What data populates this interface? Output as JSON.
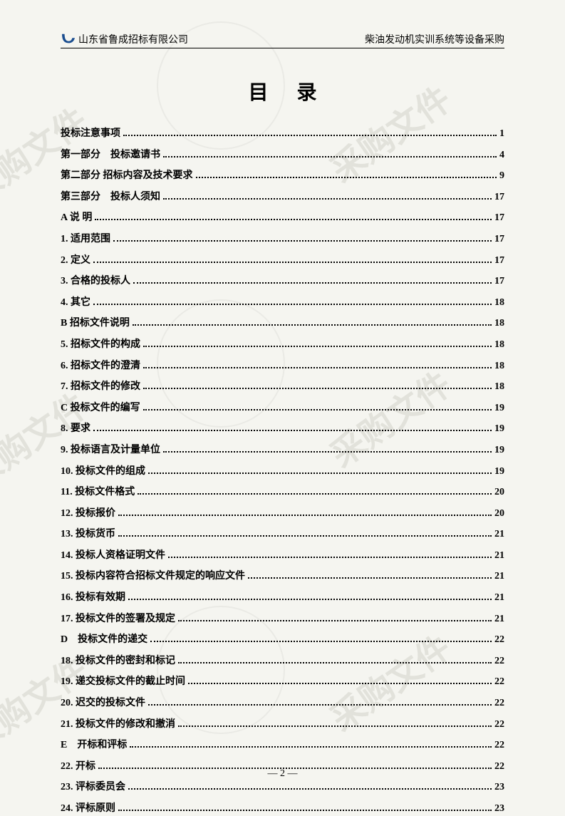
{
  "header": {
    "company": "山东省鲁成招标有限公司",
    "project": "柴油发动机实训系统等设备采购"
  },
  "title": "目录",
  "watermark_text": "采购文件",
  "toc": [
    {
      "label": "投标注意事项",
      "page": "1",
      "bold": true
    },
    {
      "label": "第一部分　投标邀请书",
      "page": "4",
      "bold": true
    },
    {
      "label": "第二部分  招标内容及技术要求",
      "page": "9",
      "bold": true
    },
    {
      "label": "第三部分　投标人须知",
      "page": "17",
      "bold": true
    },
    {
      "label": "A  说 明",
      "page": "17",
      "bold": true
    },
    {
      "label": "1. 适用范围",
      "page": "17",
      "bold": true
    },
    {
      "label": "2. 定义",
      "page": "17",
      "bold": true
    },
    {
      "label": "3. 合格的投标人",
      "page": "17",
      "bold": true
    },
    {
      "label": "4. 其它",
      "page": "18",
      "bold": true
    },
    {
      "label": "B  招标文件说明",
      "page": "18",
      "bold": true
    },
    {
      "label": "5. 招标文件的构成",
      "page": "18",
      "bold": true
    },
    {
      "label": "6. 招标文件的澄清",
      "page": "18",
      "bold": true
    },
    {
      "label": "7. 招标文件的修改",
      "page": "18",
      "bold": true
    },
    {
      "label": "C  投标文件的编写",
      "page": "19",
      "bold": true
    },
    {
      "label": "8. 要求",
      "page": "19",
      "bold": true
    },
    {
      "label": "9. 投标语言及计量单位",
      "page": "19",
      "bold": true
    },
    {
      "label": "10. 投标文件的组成",
      "page": "19",
      "bold": true
    },
    {
      "label": "11. 投标文件格式",
      "page": "20",
      "bold": true
    },
    {
      "label": "12. 投标报价",
      "page": "20",
      "bold": true
    },
    {
      "label": "13. 投标货币",
      "page": "21",
      "bold": true
    },
    {
      "label": "14. 投标人资格证明文件",
      "page": "21",
      "bold": true
    },
    {
      "label": "15. 投标内容符合招标文件规定的响应文件",
      "page": "21",
      "bold": true
    },
    {
      "label": "16. 投标有效期",
      "page": "21",
      "bold": true
    },
    {
      "label": "17. 投标文件的签署及规定",
      "page": "21",
      "bold": true
    },
    {
      "label": "D　投标文件的递交",
      "page": "22",
      "bold": true
    },
    {
      "label": "18. 投标文件的密封和标记",
      "page": "22",
      "bold": true
    },
    {
      "label": "19. 递交投标文件的截止时间",
      "page": "22",
      "bold": true
    },
    {
      "label": "20. 迟交的投标文件",
      "page": "22",
      "bold": true
    },
    {
      "label": "21. 投标文件的修改和撤消",
      "page": "22",
      "bold": true
    },
    {
      "label": "E　开标和评标",
      "page": "22",
      "bold": true
    },
    {
      "label": "22. 开标",
      "page": "22",
      "bold": true
    },
    {
      "label": "23. 评标委员会",
      "page": "23",
      "bold": true
    },
    {
      "label": "24. 评标原则",
      "page": "23",
      "bold": true
    }
  ],
  "footer": {
    "page_number": "— 2 —"
  }
}
